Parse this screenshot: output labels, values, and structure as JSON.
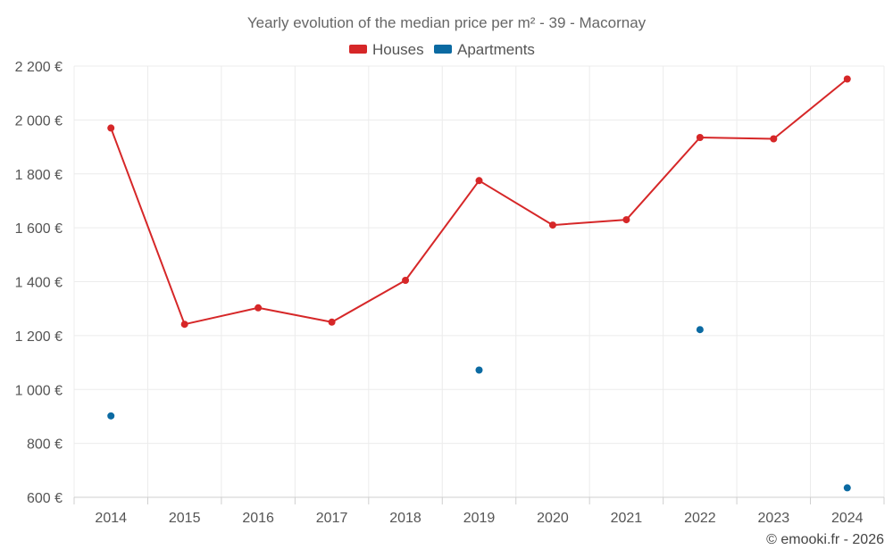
{
  "chart_data": {
    "type": "line",
    "title": "Yearly evolution of the median price per m² - 39 - Macornay",
    "categories": [
      "2014",
      "2015",
      "2016",
      "2017",
      "2018",
      "2019",
      "2020",
      "2021",
      "2022",
      "2023",
      "2024"
    ],
    "series": [
      {
        "name": "Houses",
        "color": "#d62728",
        "values": [
          1970,
          1242,
          1303,
          1250,
          1405,
          1775,
          1610,
          1630,
          1935,
          1930,
          2152
        ]
      },
      {
        "name": "Apartments",
        "color": "#0b6aa2",
        "values": [
          902,
          null,
          null,
          null,
          null,
          1072,
          null,
          null,
          1222,
          null,
          635
        ]
      }
    ],
    "ylim": [
      600,
      2200
    ],
    "yticks": [
      600,
      800,
      1000,
      1200,
      1400,
      1600,
      1800,
      2000,
      2200
    ],
    "ytick_labels": [
      "600 €",
      "800 €",
      "1 000 €",
      "1 200 €",
      "1 400 €",
      "1 600 €",
      "1 800 €",
      "2 000 €",
      "2 200 €"
    ],
    "legend_position": "top-center",
    "grid": true
  },
  "credit": "© emooki.fr - 2026"
}
